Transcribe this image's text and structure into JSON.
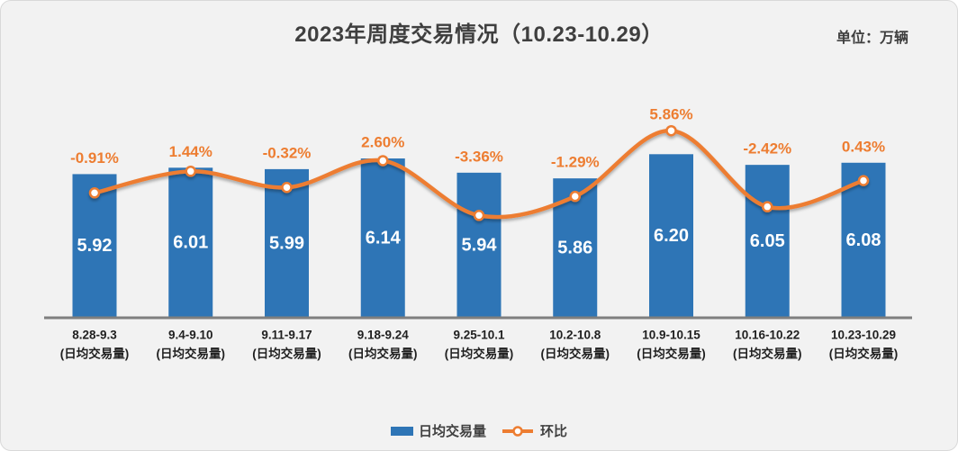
{
  "header": {
    "title": "2023年周度交易情况（10.23-10.29）",
    "unit_label": "单位：万辆"
  },
  "legend": {
    "bar_label": "日均交易量",
    "line_label": "环比"
  },
  "colors": {
    "bar": "#2E75B6",
    "line": "#ED7D31",
    "marker_fill": "#FFFFFF",
    "percent_label": "#ED7D31",
    "bar_value_label": "#FFFFFF",
    "category_label": "#1F1F1F",
    "axis_line": "#7F7F7F",
    "title_text": "#3F3F3F",
    "background": "#F2F2F2",
    "card_border": "#D9D9D9"
  },
  "chart_data": {
    "type": "combo-bar-line",
    "title": "2023年周度交易情况（10.23-10.29）",
    "unit": "单位：万辆",
    "categories": [
      "8.28-9.3",
      "9.4-9.10",
      "9.11-9.17",
      "9.18-9.24",
      "9.25-10.1",
      "10.2-10.8",
      "10.9-10.15",
      "10.16-10.22",
      "10.23-10.29"
    ],
    "category_sublabel": "(日均交易量)",
    "series": [
      {
        "name": "日均交易量",
        "type": "bar",
        "values": [
          5.92,
          6.01,
          5.99,
          6.14,
          5.94,
          5.86,
          6.2,
          6.05,
          6.08
        ],
        "value_labels": [
          "5.92",
          "6.01",
          "5.99",
          "6.14",
          "5.94",
          "5.86",
          "6.20",
          "6.05",
          "6.08"
        ]
      },
      {
        "name": "环比",
        "type": "line",
        "values_pct": [
          -0.91,
          1.44,
          -0.32,
          2.6,
          -3.36,
          -1.29,
          5.86,
          -2.42,
          0.43
        ],
        "value_labels": [
          "-0.91%",
          "1.44%",
          "-0.32%",
          "2.60%",
          "-3.36%",
          "-1.29%",
          "5.86%",
          "-2.42%",
          "0.43%"
        ]
      }
    ],
    "bar_ylim": [
      3.9,
      6.7
    ],
    "line_ylim_pct": [
      -10,
      15
    ],
    "grid": false,
    "legend_position": "bottom"
  }
}
